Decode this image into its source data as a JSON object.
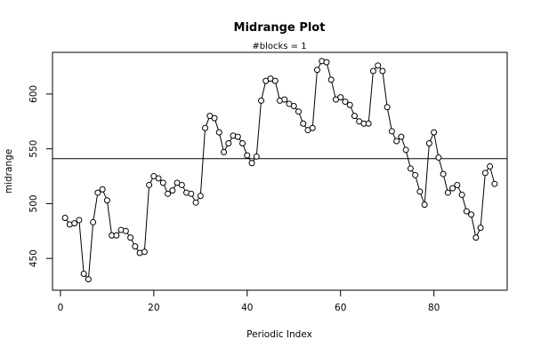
{
  "chart_data": {
    "type": "line",
    "title": "Midrange Plot",
    "subtitle": "#blocks =  1",
    "xlabel": "Periodic Index",
    "ylabel": "midrange",
    "xlim": [
      -1.7,
      95.7
    ],
    "ylim": [
      421,
      638
    ],
    "x_ticks": [
      0,
      20,
      40,
      60,
      80
    ],
    "y_ticks": [
      450,
      500,
      550,
      600
    ],
    "x_tick_labels": [
      "0",
      "20",
      "40",
      "60",
      "80"
    ],
    "y_tick_labels": [
      "450",
      "500",
      "550",
      "600"
    ],
    "reference_line": 541,
    "marker": "open-circle",
    "line_color": "#000000",
    "grid": false,
    "x": [
      1,
      2,
      3,
      4,
      5,
      6,
      7,
      8,
      9,
      10,
      11,
      12,
      13,
      14,
      15,
      16,
      17,
      18,
      19,
      20,
      21,
      22,
      23,
      24,
      25,
      26,
      27,
      28,
      29,
      30,
      31,
      32,
      33,
      34,
      35,
      36,
      37,
      38,
      39,
      40,
      41,
      42,
      43,
      44,
      45,
      46,
      47,
      48,
      49,
      50,
      51,
      52,
      53,
      54,
      55,
      56,
      57,
      58,
      59,
      60,
      61,
      62,
      63,
      64,
      65,
      66,
      67,
      68,
      69,
      70,
      71,
      72,
      73,
      74,
      75,
      76,
      77,
      78,
      79,
      80,
      81,
      82,
      83,
      84,
      85,
      86,
      87,
      88,
      89,
      90,
      91,
      92,
      93
    ],
    "values": [
      487,
      481,
      482,
      485,
      436,
      431,
      483,
      510,
      513,
      503,
      471,
      471,
      476,
      475,
      469,
      461,
      455,
      456,
      517,
      525,
      523,
      519,
      509,
      512,
      519,
      517,
      510,
      509,
      501,
      507,
      569,
      580,
      578,
      565,
      547,
      555,
      562,
      561,
      555,
      544,
      537,
      543,
      594,
      612,
      614,
      612,
      594,
      595,
      591,
      589,
      584,
      573,
      567,
      569,
      622,
      630,
      629,
      613,
      595,
      597,
      593,
      590,
      580,
      575,
      573,
      573,
      621,
      626,
      621,
      588,
      566,
      557,
      561,
      549,
      532,
      526,
      511,
      499,
      555,
      565,
      542,
      527,
      510,
      514,
      517,
      508,
      493,
      490,
      469,
      478,
      528,
      534,
      518
    ]
  }
}
